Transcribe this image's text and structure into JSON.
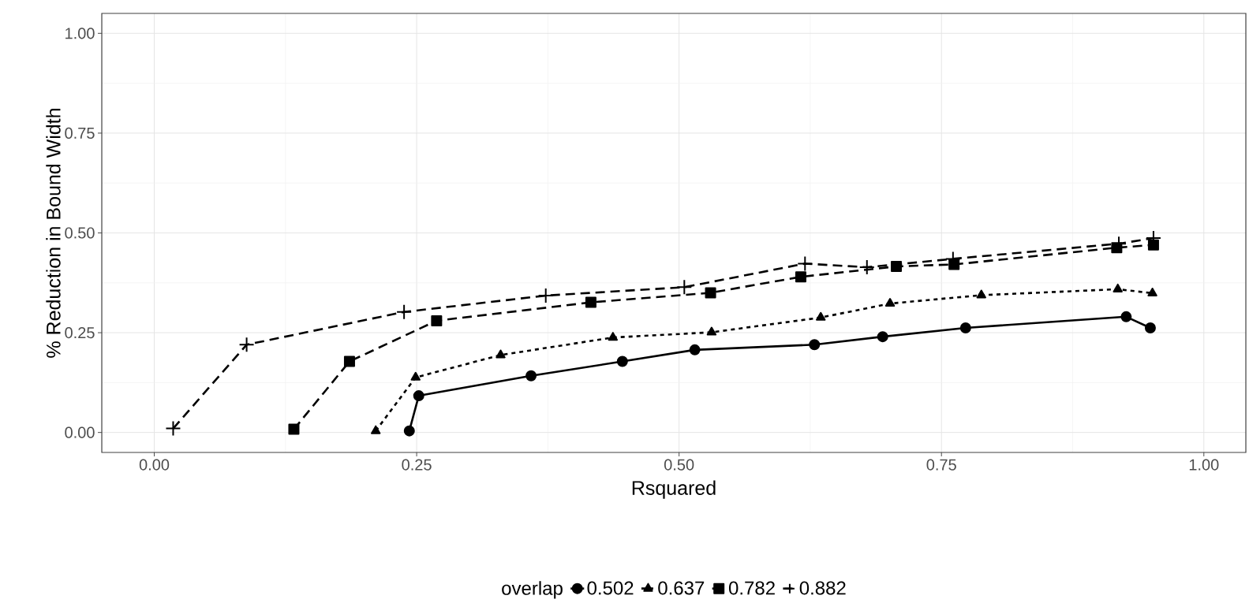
{
  "chart_data": {
    "type": "line",
    "xlabel": "Rsquared",
    "ylabel": "% Reduction in Bound Width",
    "legend_title": "overlap",
    "xlim": [
      -0.05,
      1.04
    ],
    "ylim": [
      -0.05,
      1.05
    ],
    "xticks": [
      {
        "value": 0,
        "label": "0.00"
      },
      {
        "value": 0.25,
        "label": "0.25"
      },
      {
        "value": 0.5,
        "label": "0.50"
      },
      {
        "value": 0.75,
        "label": "0.75"
      },
      {
        "value": 1,
        "label": "1.00"
      }
    ],
    "yticks": [
      {
        "value": 0,
        "label": "0.00"
      },
      {
        "value": 0.25,
        "label": "0.25"
      },
      {
        "value": 0.5,
        "label": "0.50"
      },
      {
        "value": 0.75,
        "label": "0.75"
      },
      {
        "value": 1,
        "label": "1.00"
      }
    ],
    "grid": true,
    "legend": "bottom",
    "series": [
      {
        "name": "0.502",
        "color": "#000000",
        "marker": "circle",
        "line_style": "solid",
        "x": [
          0.243,
          0.252,
          0.359,
          0.446,
          0.515,
          0.629,
          0.694,
          0.773,
          0.926,
          0.949
        ],
        "values": [
          0.004,
          0.092,
          0.142,
          0.178,
          0.207,
          0.22,
          0.24,
          0.262,
          0.29,
          0.262
        ]
      },
      {
        "name": "0.637",
        "color": "#000000",
        "marker": "triangle",
        "line_style": "dotted",
        "x": [
          0.211,
          0.249,
          0.33,
          0.437,
          0.531,
          0.635,
          0.701,
          0.788,
          0.918,
          0.951
        ],
        "values": [
          0.004,
          0.138,
          0.194,
          0.238,
          0.251,
          0.288,
          0.323,
          0.344,
          0.359,
          0.349
        ]
      },
      {
        "name": "0.782",
        "color": "#000000",
        "marker": "square",
        "line_style": "dashed",
        "x": [
          0.133,
          0.186,
          0.269,
          0.416,
          0.53,
          0.616,
          0.707,
          0.762,
          0.917,
          0.952
        ],
        "values": [
          0.008,
          0.178,
          0.28,
          0.326,
          0.35,
          0.39,
          0.416,
          0.421,
          0.463,
          0.47
        ]
      },
      {
        "name": "0.882",
        "color": "#000000",
        "marker": "cross",
        "line_style": "dashed",
        "x": [
          0.018,
          0.088,
          0.238,
          0.373,
          0.505,
          0.62,
          0.679,
          0.761,
          0.919,
          0.952
        ],
        "values": [
          0.01,
          0.22,
          0.302,
          0.343,
          0.364,
          0.423,
          0.414,
          0.435,
          0.473,
          0.487
        ]
      }
    ]
  }
}
